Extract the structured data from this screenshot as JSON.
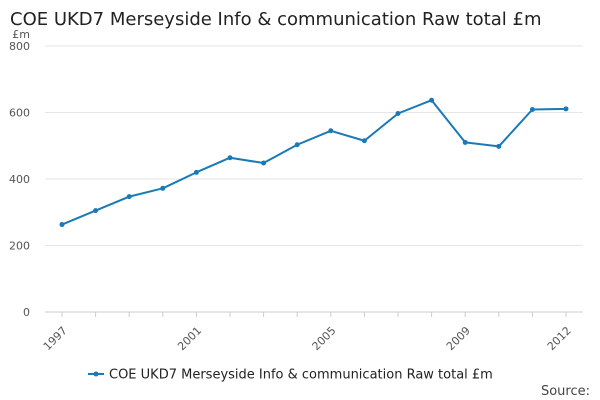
{
  "chart_data": {
    "type": "line",
    "title": "COE UKD7 Merseyside Info & communication Raw total £m",
    "ylabel": "£m",
    "xlabel": "",
    "x": [
      1997,
      1998,
      1999,
      2000,
      2001,
      2002,
      2003,
      2004,
      2005,
      2006,
      2007,
      2008,
      2009,
      2010,
      2011,
      2012
    ],
    "x_ticks": [
      "1997",
      "2001",
      "2005",
      "2009",
      "2012"
    ],
    "y_ticks": [
      "0",
      "200",
      "400",
      "600",
      "800"
    ],
    "ylim": [
      0,
      800
    ],
    "xlim": [
      1997,
      2012
    ],
    "series": [
      {
        "name": "COE UKD7 Merseyside Info & communication Raw total £m",
        "color": "#1a7ab8",
        "values": [
          263,
          305,
          347,
          372,
          420,
          464,
          448,
          503,
          545,
          515,
          597,
          637,
          510,
          498,
          609,
          611
        ]
      }
    ],
    "grid": true,
    "legend_position": "bottom",
    "source_label": "Source:"
  }
}
